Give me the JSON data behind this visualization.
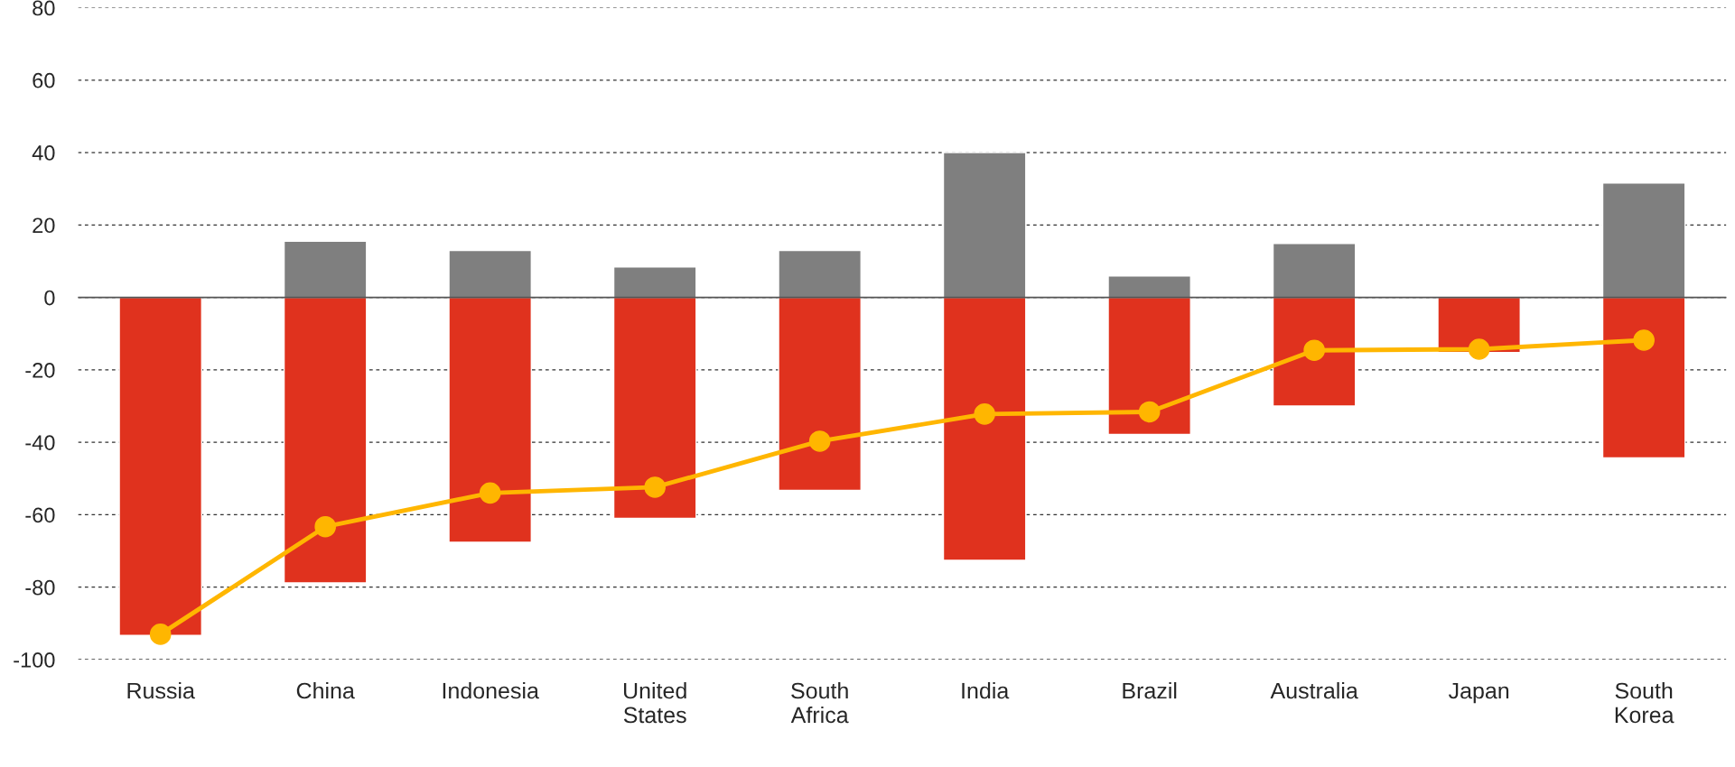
{
  "chart_data": {
    "type": "bar",
    "stacked": true,
    "categories": [
      "Russia",
      "China",
      "Indonesia",
      "United States",
      "South Africa",
      "India",
      "Brazil",
      "Australia",
      "Japan",
      "South Korea"
    ],
    "series": [
      {
        "color": "#7f7f7f",
        "values": [
          null,
          15.5,
          13,
          8.4,
          13,
          40,
          5.9,
          14.9,
          null,
          31.6
        ]
      },
      {
        "color": "#e0321e",
        "values": [
          -93.3,
          -78.8,
          -67.6,
          -61,
          -53.3,
          -72.6,
          -37.8,
          -30,
          -15.2,
          -44.3
        ]
      },
      {
        "type": "line",
        "color": "#ffb600",
        "marker": "circle",
        "line_style": "solid",
        "values": [
          -93,
          -63.3,
          -54,
          -52.4,
          -39.7,
          -32.2,
          -31.6,
          -14.6,
          -14.3,
          -11.8
        ]
      }
    ],
    "ylim": [
      -100,
      80
    ],
    "yticks": [
      -100,
      -80,
      -60,
      -40,
      -20,
      0,
      20,
      40,
      60,
      80
    ],
    "grid": "y",
    "ref_lines": [
      {
        "axis": "y",
        "value": 0,
        "color": "#555555",
        "line_style": "solid"
      }
    ]
  }
}
